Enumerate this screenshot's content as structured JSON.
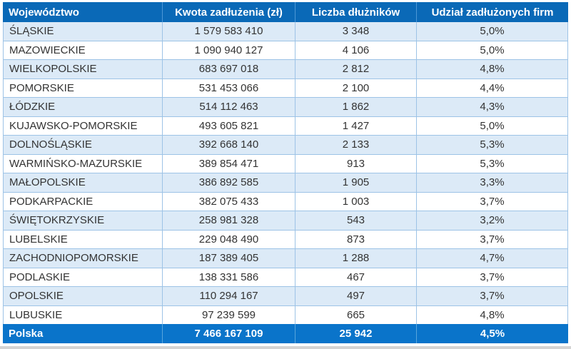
{
  "colors": {
    "header_bg": "#0A69B7",
    "header_divider": "#4C97D6",
    "footer_bg": "#0A74CA",
    "footer_divider": "#57A5DC",
    "row_alt_bg": "#DCEAF7",
    "row_bg": "#FFFFFF",
    "grid_line": "#9DC3E6",
    "body_text": "#333333",
    "header_text": "#FFFFFF",
    "bottom_edge": "#D4D4D4"
  },
  "chart_data": {
    "type": "table",
    "title": "",
    "columns": [
      "Województwo",
      "Kwota zadłużenia (zł)",
      "Liczba dłużników",
      "Udział zadłużonych firm"
    ],
    "rows": [
      [
        "ŚLĄSKIE",
        "1 579 583 410",
        "3 348",
        "5,0%"
      ],
      [
        "MAZOWIECKIE",
        "1 090 940 127",
        "4 106",
        "5,0%"
      ],
      [
        "WIELKOPOLSKIE",
        "683 697 018",
        "2 812",
        "4,8%"
      ],
      [
        "POMORSKIE",
        "531 453 066",
        "2 100",
        "4,4%"
      ],
      [
        "ŁÓDZKIE",
        "514 112 463",
        "1 862",
        "4,3%"
      ],
      [
        "KUJAWSKO-POMORSKIE",
        "493 605 821",
        "1 427",
        "5,0%"
      ],
      [
        "DOLNOŚLĄSKIE",
        "392 668 140",
        "2 133",
        "5,3%"
      ],
      [
        "WARMIŃSKO-MAZURSKIE",
        "389 854 471",
        "913",
        "5,3%"
      ],
      [
        "MAŁOPOLSKIE",
        "386 892 585",
        "1 905",
        "3,3%"
      ],
      [
        "PODKARPACKIE",
        "382 075 433",
        "1 003",
        "3,7%"
      ],
      [
        "ŚWIĘTOKRZYSKIE",
        "258 981 328",
        "543",
        "3,2%"
      ],
      [
        "LUBELSKIE",
        "229 048 490",
        "873",
        "3,7%"
      ],
      [
        "ZACHODNIOPOMORSKIE",
        "187 389 405",
        "1 288",
        "4,7%"
      ],
      [
        "PODLASKIE",
        "138 331 586",
        "467",
        "3,7%"
      ],
      [
        "OPOLSKIE",
        "110 294 167",
        "497",
        "3,7%"
      ],
      [
        "LUBUSKIE",
        "97 239 599",
        "665",
        "4,8%"
      ]
    ],
    "total_row": [
      "Polska",
      "7 466 167 109",
      "25 942",
      "4,5%"
    ]
  }
}
